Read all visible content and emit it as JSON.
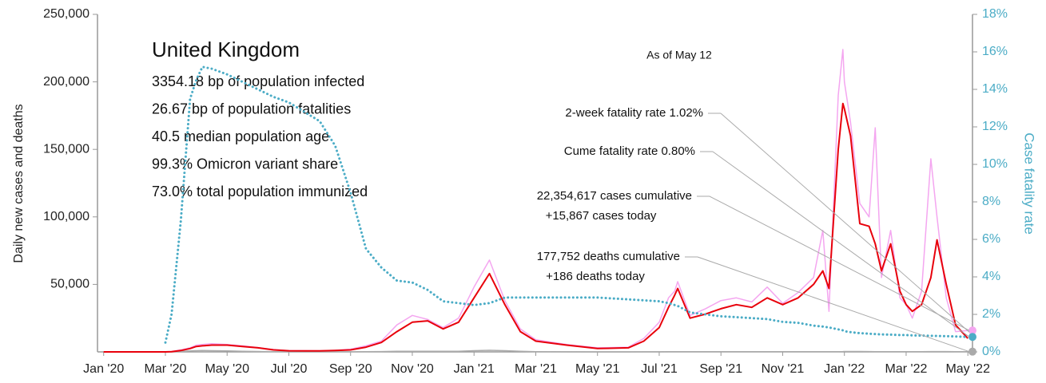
{
  "chart_data": {
    "type": "line",
    "title": "United Kingdom",
    "subtitle": [
      "3354.18 bp of population infected",
      "26.67 bp of population fatalities",
      "40.5 median population age",
      "99.3% Omicron variant share",
      "73.0% total population immunized"
    ],
    "annotations": {
      "as_of": "As of May 12",
      "two_week_rate": "2-week fatality rate 1.02%",
      "cume_rate": "Cume fatality rate 0.80%",
      "cases_cumulative": "22,354,617 cases cumulative",
      "cases_today": "+15,867 cases today",
      "deaths_cumulative": "177,752 deaths cumulative",
      "deaths_today": "+186 deaths today"
    },
    "ylabel": "Daily new cases and deaths",
    "y2label": "Case fatality rate",
    "x": [
      0,
      2,
      2.2,
      2.5,
      2.8,
      3,
      3.2,
      3.5,
      4,
      4.5,
      5,
      5.5,
      6,
      7,
      7.5,
      8,
      8.5,
      9,
      9.5,
      10,
      10.5,
      11,
      11.5,
      12,
      12.5,
      13,
      13.5,
      14,
      15,
      16,
      17,
      17.5,
      18,
      18.3,
      18.5,
      18.6,
      19,
      19.5,
      20,
      20.5,
      21,
      21.5,
      22,
      22.5,
      23,
      23.3,
      23.5,
      23.8,
      23.95,
      24,
      24.2,
      24.5,
      24.8,
      25,
      25.2,
      25.5,
      25.8,
      26,
      26.2,
      26.5,
      26.8,
      27,
      27.3,
      27.6,
      28
    ],
    "xlim": [
      -0.2,
      28.15
    ],
    "xticks": [
      {
        "value": 0,
        "label": "Jan '20"
      },
      {
        "value": 2,
        "label": "Mar '20"
      },
      {
        "value": 4,
        "label": "May '20"
      },
      {
        "value": 6,
        "label": "Jul '20"
      },
      {
        "value": 8,
        "label": "Sep '20"
      },
      {
        "value": 10,
        "label": "Nov '20"
      },
      {
        "value": 12,
        "label": "Jan '21"
      },
      {
        "value": 14,
        "label": "Mar '21"
      },
      {
        "value": 16,
        "label": "May '21"
      },
      {
        "value": 18,
        "label": "Jul '21"
      },
      {
        "value": 20,
        "label": "Sep '21"
      },
      {
        "value": 22,
        "label": "Nov '21"
      },
      {
        "value": 24,
        "label": "Jan '22"
      },
      {
        "value": 26,
        "label": "Mar '22"
      },
      {
        "value": 28,
        "label": "May '22"
      }
    ],
    "ylim": [
      0,
      250000
    ],
    "yticks": [
      {
        "value": 50000,
        "label": "50,000"
      },
      {
        "value": 100000,
        "label": "100,000"
      },
      {
        "value": 150000,
        "label": "150,000"
      },
      {
        "value": 200000,
        "label": "200,000"
      },
      {
        "value": 250000,
        "label": "250,000"
      }
    ],
    "y2lim": [
      0,
      18
    ],
    "y2ticks": [
      {
        "value": 0,
        "label": "0%"
      },
      {
        "value": 2,
        "label": "2%"
      },
      {
        "value": 4,
        "label": "4%"
      },
      {
        "value": 6,
        "label": "6%"
      },
      {
        "value": 8,
        "label": "8%"
      },
      {
        "value": 10,
        "label": "10%"
      },
      {
        "value": 12,
        "label": "12%"
      },
      {
        "value": 14,
        "label": "14%"
      },
      {
        "value": 16,
        "label": "16%"
      },
      {
        "value": 18,
        "label": "18%"
      }
    ],
    "series": [
      {
        "color": "#f4a6f0",
        "width": 1.5,
        "values": [
          0,
          0,
          300,
          1500,
          3000,
          5000,
          5500,
          6000,
          5500,
          4500,
          3200,
          1800,
          900,
          800,
          1200,
          2000,
          4500,
          8000,
          20000,
          27000,
          24000,
          18000,
          25000,
          48000,
          68000,
          38000,
          17000,
          9000,
          5500,
          3000,
          3500,
          10000,
          22000,
          40000,
          45000,
          52000,
          27000,
          32000,
          38000,
          40000,
          37000,
          48000,
          36000,
          44000,
          55000,
          90000,
          30000,
          190000,
          224000,
          200000,
          170000,
          110000,
          100000,
          166000,
          55000,
          90000,
          40000,
          35000,
          25000,
          45000,
          143000,
          100000,
          40000,
          15000,
          15867
        ]
      },
      {
        "color": "#aaaaaa",
        "width": 1.5,
        "values": [
          0,
          0,
          50,
          300,
          700,
          900,
          1000,
          900,
          700,
          500,
          300,
          150,
          80,
          50,
          50,
          60,
          150,
          250,
          400,
          450,
          450,
          450,
          500,
          900,
          1200,
          900,
          500,
          200,
          60,
          20,
          20,
          40,
          50,
          100,
          150,
          150,
          100,
          120,
          150,
          150,
          150,
          150,
          150,
          120,
          120,
          120,
          120,
          200,
          250,
          270,
          280,
          270,
          250,
          200,
          150,
          200,
          200,
          180,
          150,
          200,
          250,
          250,
          250,
          200,
          186
        ]
      },
      {
        "color": "#e8000b",
        "width": 2,
        "values": [
          0,
          0,
          200,
          1000,
          2500,
          4000,
          4500,
          5000,
          5000,
          4000,
          3000,
          1500,
          800,
          700,
          1000,
          1500,
          3500,
          7000,
          15000,
          22000,
          23000,
          17000,
          22000,
          40000,
          58000,
          35000,
          15000,
          8000,
          5000,
          2500,
          3000,
          8000,
          18000,
          33000,
          42000,
          47000,
          25000,
          28000,
          32000,
          35000,
          33000,
          40000,
          35000,
          40000,
          50000,
          60000,
          47000,
          150000,
          184000,
          180000,
          160000,
          95000,
          93000,
          80000,
          60000,
          80000,
          45000,
          35000,
          30000,
          35000,
          55000,
          83000,
          50000,
          20000,
          10000
        ]
      },
      {
        "color": "#4bacc6",
        "width": 3,
        "dotted": true,
        "axis": "y2",
        "values": [
          null,
          0.5,
          2,
          7,
          13.5,
          14.5,
          15.2,
          15.1,
          14.8,
          14.4,
          14,
          13.6,
          13.3,
          12.3,
          11,
          8.5,
          5.5,
          4.5,
          3.8,
          3.7,
          3.3,
          2.7,
          2.6,
          2.5,
          2.6,
          2.9,
          2.9,
          2.9,
          2.9,
          2.9,
          2.8,
          2.75,
          2.7,
          2.6,
          2.5,
          2.45,
          2.1,
          2.0,
          1.9,
          1.85,
          1.8,
          1.75,
          1.6,
          1.55,
          1.4,
          1.35,
          1.3,
          1.2,
          1.15,
          1.1,
          1.05,
          1.0,
          0.97,
          0.95,
          0.93,
          0.92,
          0.9,
          0.9,
          0.88,
          0.87,
          0.86,
          0.85,
          0.84,
          0.82,
          0.8
        ]
      }
    ]
  }
}
